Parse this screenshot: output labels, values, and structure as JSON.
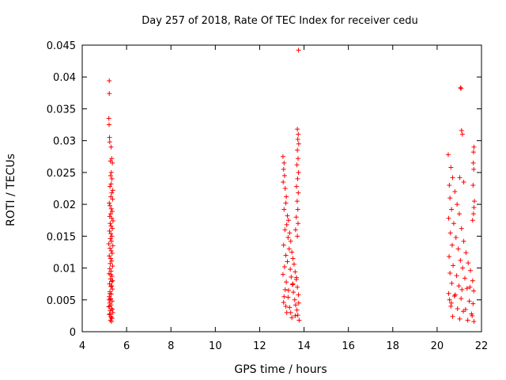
{
  "chart_data": {
    "type": "scatter",
    "title": "Day 257 of 2018, Rate Of TEC Index for receiver cedu",
    "xlabel": "GPS time / hours",
    "ylabel": "ROTI / TECUs",
    "xlim": [
      4,
      22
    ],
    "ylim": [
      0,
      0.045
    ],
    "xticks": [
      4,
      6,
      8,
      10,
      12,
      14,
      16,
      18,
      20,
      22
    ],
    "yticks": [
      0,
      0.005,
      0.01,
      0.015,
      0.02,
      0.025,
      0.03,
      0.035,
      0.04,
      0.045
    ],
    "xtick_labels": [
      "4",
      "6",
      "8",
      "10",
      "12",
      "14",
      "16",
      "18",
      "20",
      "22"
    ],
    "ytick_labels": [
      "0",
      "0.005",
      "0.01",
      "0.015",
      "0.02",
      "0.025",
      "0.03",
      "0.035",
      "0.04",
      "0.045"
    ],
    "marker": "+",
    "color": "#ff0000",
    "series": [
      {
        "name": "ROTI",
        "points": [
          [
            5.22,
            0.0394
          ],
          [
            5.22,
            0.0374
          ],
          [
            5.2,
            0.0335
          ],
          [
            5.21,
            0.0325
          ],
          [
            5.23,
            0.0305
          ],
          [
            5.24,
            0.0298
          ],
          [
            5.3,
            0.029
          ],
          [
            5.33,
            0.0272
          ],
          [
            5.27,
            0.0268
          ],
          [
            5.36,
            0.0265
          ],
          [
            5.31,
            0.025
          ],
          [
            5.28,
            0.0245
          ],
          [
            5.34,
            0.024
          ],
          [
            5.3,
            0.0232
          ],
          [
            5.25,
            0.0228
          ],
          [
            5.38,
            0.0222
          ],
          [
            5.33,
            0.0218
          ],
          [
            5.29,
            0.0212
          ],
          [
            5.37,
            0.0208
          ],
          [
            5.22,
            0.0202
          ],
          [
            5.25,
            0.0198
          ],
          [
            5.31,
            0.0193
          ],
          [
            5.35,
            0.0189
          ],
          [
            5.28,
            0.0185
          ],
          [
            5.24,
            0.0181
          ],
          [
            5.33,
            0.0178
          ],
          [
            5.39,
            0.0174
          ],
          [
            5.26,
            0.017
          ],
          [
            5.3,
            0.0166
          ],
          [
            5.36,
            0.0162
          ],
          [
            5.23,
            0.0158
          ],
          [
            5.29,
            0.0154
          ],
          [
            5.34,
            0.015
          ],
          [
            5.27,
            0.0146
          ],
          [
            5.32,
            0.0142
          ],
          [
            5.2,
            0.0138
          ],
          [
            5.38,
            0.0135
          ],
          [
            5.25,
            0.0131
          ],
          [
            5.31,
            0.0127
          ],
          [
            5.35,
            0.0123
          ],
          [
            5.22,
            0.0119
          ],
          [
            5.28,
            0.0115
          ],
          [
            5.33,
            0.0111
          ],
          [
            5.26,
            0.0107
          ],
          [
            5.37,
            0.0103
          ],
          [
            5.24,
            0.0099
          ],
          [
            5.3,
            0.0095
          ],
          [
            5.21,
            0.0091
          ],
          [
            5.34,
            0.0087
          ],
          [
            5.27,
            0.0083
          ],
          [
            5.32,
            0.0079
          ],
          [
            5.23,
            0.0075
          ],
          [
            5.29,
            0.0071
          ],
          [
            5.36,
            0.0067
          ],
          [
            5.25,
            0.0063
          ],
          [
            5.31,
            0.0059
          ],
          [
            5.22,
            0.0055
          ],
          [
            5.28,
            0.0051
          ],
          [
            5.35,
            0.0048
          ],
          [
            5.24,
            0.0045
          ],
          [
            5.3,
            0.0042
          ],
          [
            5.2,
            0.0039
          ],
          [
            5.33,
            0.0036
          ],
          [
            5.26,
            0.0033
          ],
          [
            5.38,
            0.003
          ],
          [
            5.23,
            0.0027
          ],
          [
            5.29,
            0.0024
          ],
          [
            5.34,
            0.0021
          ],
          [
            5.27,
            0.0018
          ],
          [
            5.32,
            0.0016
          ],
          [
            5.21,
            0.005
          ],
          [
            5.25,
            0.006
          ],
          [
            5.33,
            0.0072
          ],
          [
            5.37,
            0.008
          ],
          [
            5.29,
            0.009
          ],
          [
            5.22,
            0.004
          ],
          [
            5.35,
            0.0035
          ],
          [
            5.24,
            0.0028
          ],
          [
            5.31,
            0.0022
          ],
          [
            5.27,
            0.0052
          ],
          [
            13.05,
            0.0275
          ],
          [
            13.1,
            0.0265
          ],
          [
            13.08,
            0.0255
          ],
          [
            13.12,
            0.0245
          ],
          [
            13.06,
            0.0235
          ],
          [
            13.15,
            0.0225
          ],
          [
            13.2,
            0.0212
          ],
          [
            13.18,
            0.0202
          ],
          [
            13.1,
            0.0192
          ],
          [
            13.25,
            0.0182
          ],
          [
            13.3,
            0.0175
          ],
          [
            13.22,
            0.0168
          ],
          [
            13.14,
            0.016
          ],
          [
            13.35,
            0.0155
          ],
          [
            13.28,
            0.0148
          ],
          [
            13.4,
            0.0142
          ],
          [
            13.08,
            0.0136
          ],
          [
            13.33,
            0.013
          ],
          [
            13.45,
            0.0125
          ],
          [
            13.18,
            0.012
          ],
          [
            13.5,
            0.0115
          ],
          [
            13.25,
            0.011
          ],
          [
            13.55,
            0.0106
          ],
          [
            13.12,
            0.0102
          ],
          [
            13.38,
            0.0098
          ],
          [
            13.6,
            0.0094
          ],
          [
            13.05,
            0.009
          ],
          [
            13.42,
            0.0086
          ],
          [
            13.65,
            0.0082
          ],
          [
            13.2,
            0.0078
          ],
          [
            13.48,
            0.0074
          ],
          [
            13.7,
            0.007
          ],
          [
            13.15,
            0.0066
          ],
          [
            13.52,
            0.0062
          ],
          [
            13.75,
            0.0058
          ],
          [
            13.28,
            0.0054
          ],
          [
            13.58,
            0.005
          ],
          [
            13.08,
            0.0046
          ],
          [
            13.62,
            0.0042
          ],
          [
            13.35,
            0.0038
          ],
          [
            13.68,
            0.0034
          ],
          [
            13.22,
            0.003
          ],
          [
            13.72,
            0.0026
          ],
          [
            13.45,
            0.0022
          ],
          [
            13.78,
            0.0018
          ],
          [
            13.1,
            0.0055
          ],
          [
            13.3,
            0.0065
          ],
          [
            13.5,
            0.0075
          ],
          [
            13.66,
            0.0085
          ],
          [
            13.18,
            0.004
          ],
          [
            13.4,
            0.003
          ],
          [
            13.6,
            0.0025
          ],
          [
            13.76,
            0.0045
          ],
          [
            13.75,
            0.0442
          ],
          [
            13.7,
            0.0318
          ],
          [
            13.74,
            0.031
          ],
          [
            13.72,
            0.0302
          ],
          [
            13.76,
            0.0295
          ],
          [
            13.7,
            0.0285
          ],
          [
            13.73,
            0.0272
          ],
          [
            13.68,
            0.0262
          ],
          [
            13.75,
            0.025
          ],
          [
            13.71,
            0.024
          ],
          [
            13.66,
            0.0228
          ],
          [
            13.74,
            0.0218
          ],
          [
            13.69,
            0.0205
          ],
          [
            13.72,
            0.0192
          ],
          [
            13.65,
            0.018
          ],
          [
            13.73,
            0.017
          ],
          [
            13.62,
            0.016
          ],
          [
            13.7,
            0.015
          ],
          [
            20.5,
            0.0278
          ],
          [
            20.62,
            0.0258
          ],
          [
            20.7,
            0.0242
          ],
          [
            20.55,
            0.023
          ],
          [
            20.8,
            0.022
          ],
          [
            20.58,
            0.021
          ],
          [
            20.9,
            0.02
          ],
          [
            20.65,
            0.0192
          ],
          [
            21.0,
            0.0185
          ],
          [
            20.52,
            0.0178
          ],
          [
            20.75,
            0.017
          ],
          [
            21.1,
            0.0162
          ],
          [
            20.6,
            0.0155
          ],
          [
            20.85,
            0.0148
          ],
          [
            21.2,
            0.0142
          ],
          [
            20.68,
            0.0136
          ],
          [
            20.95,
            0.013
          ],
          [
            21.3,
            0.0124
          ],
          [
            20.54,
            0.0118
          ],
          [
            21.05,
            0.0112
          ],
          [
            21.4,
            0.0108
          ],
          [
            20.72,
            0.0104
          ],
          [
            21.15,
            0.01
          ],
          [
            21.5,
            0.0096
          ],
          [
            20.58,
            0.0092
          ],
          [
            20.88,
            0.0088
          ],
          [
            21.25,
            0.0084
          ],
          [
            21.6,
            0.008
          ],
          [
            20.66,
            0.0076
          ],
          [
            20.98,
            0.0072
          ],
          [
            21.35,
            0.0068
          ],
          [
            21.65,
            0.0064
          ],
          [
            20.52,
            0.006
          ],
          [
            20.78,
            0.0056
          ],
          [
            21.08,
            0.0052
          ],
          [
            21.45,
            0.0048
          ],
          [
            21.62,
            0.0044
          ],
          [
            20.62,
            0.004
          ],
          [
            20.92,
            0.0036
          ],
          [
            21.18,
            0.0032
          ],
          [
            21.55,
            0.0028
          ],
          [
            20.7,
            0.0024
          ],
          [
            21.02,
            0.002
          ],
          [
            21.38,
            0.0018
          ],
          [
            21.66,
            0.0016
          ],
          [
            20.56,
            0.005
          ],
          [
            20.82,
            0.0058
          ],
          [
            21.12,
            0.0066
          ],
          [
            21.48,
            0.007
          ],
          [
            20.64,
            0.0045
          ],
          [
            21.28,
            0.0035
          ],
          [
            21.58,
            0.0025
          ],
          [
            21.05,
            0.0383
          ],
          [
            21.08,
            0.0382
          ],
          [
            21.1,
            0.0316
          ],
          [
            21.14,
            0.031
          ],
          [
            21.02,
            0.0242
          ],
          [
            21.2,
            0.0235
          ],
          [
            21.66,
            0.029
          ],
          [
            21.64,
            0.0282
          ],
          [
            21.63,
            0.0265
          ],
          [
            21.65,
            0.0255
          ],
          [
            21.62,
            0.023
          ],
          [
            21.68,
            0.0205
          ],
          [
            21.66,
            0.0195
          ],
          [
            21.64,
            0.0185
          ],
          [
            21.6,
            0.0175
          ]
        ]
      }
    ]
  }
}
